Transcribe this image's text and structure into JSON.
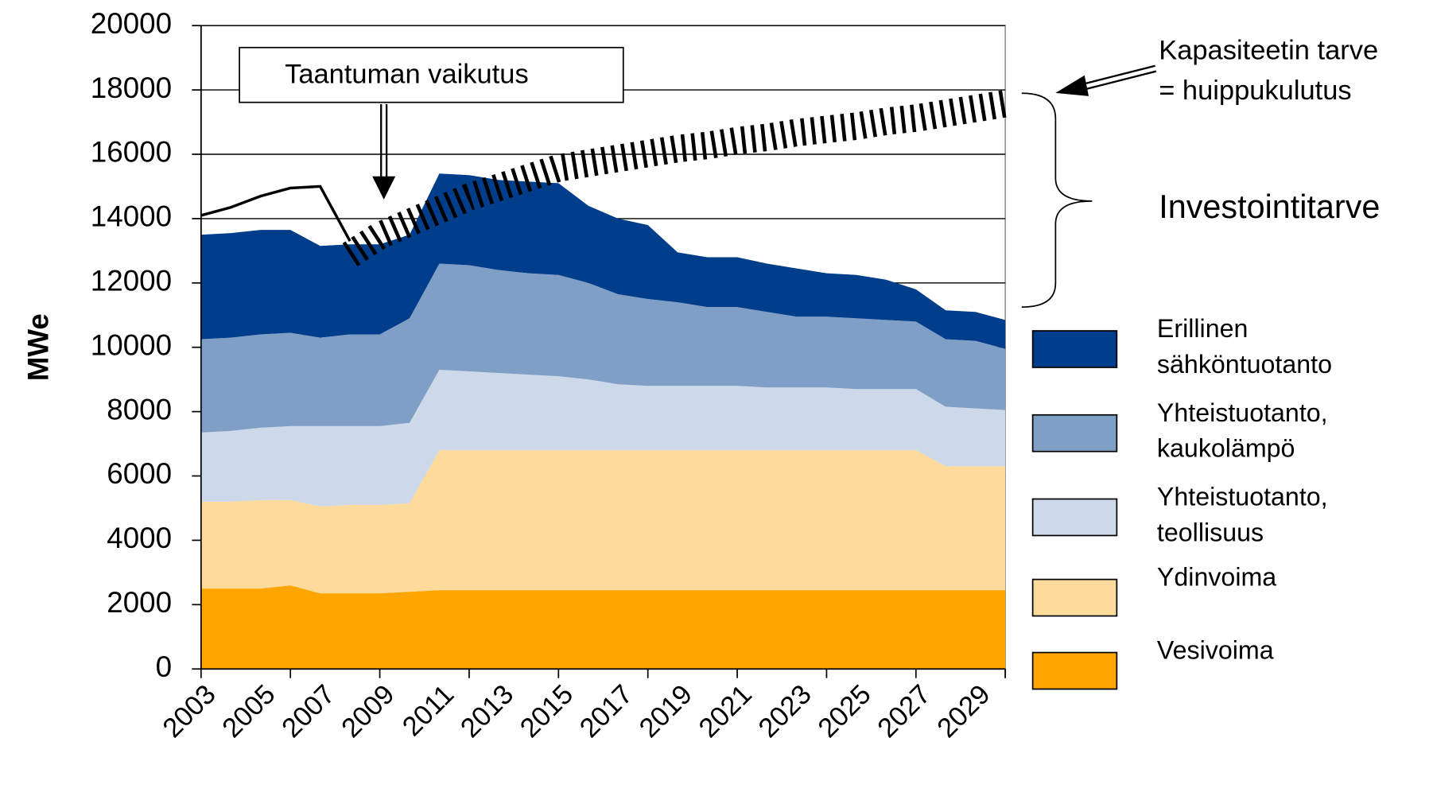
{
  "chart_data": {
    "type": "stacked_area",
    "y_label": "MWe",
    "categories": [
      "2003",
      null,
      "2005",
      null,
      "2007",
      null,
      "2009",
      null,
      "2011",
      null,
      "2013",
      null,
      "2015",
      null,
      "2017",
      null,
      "2019",
      null,
      "2021",
      null,
      "2023",
      null,
      "2025",
      null,
      "2027",
      null,
      "2029",
      null
    ],
    "series": [
      {
        "name": "Vesivoima",
        "color": "#ffa500",
        "values": [
          2500,
          2500,
          2500,
          2600,
          2350,
          2350,
          2350,
          2400,
          2450,
          2450,
          2450,
          2450,
          2450,
          2450,
          2450,
          2450,
          2450,
          2450,
          2450,
          2450,
          2450,
          2450,
          2450,
          2450,
          2450,
          2450,
          2450,
          2450
        ]
      },
      {
        "name": "Ydinvoima",
        "color": "#fcda9b",
        "values": [
          2700,
          2700,
          2750,
          2650,
          2700,
          2750,
          2750,
          2750,
          4350,
          4350,
          4350,
          4350,
          4350,
          4350,
          4350,
          4350,
          4350,
          4350,
          4350,
          4350,
          4350,
          4350,
          4350,
          4350,
          4350,
          3850,
          3850,
          3850
        ]
      },
      {
        "name": "Yhteistuotanto, teollisuus",
        "color": "#cdd9e8",
        "values": [
          2150,
          2200,
          2250,
          2300,
          2500,
          2450,
          2450,
          2500,
          2500,
          2450,
          2400,
          2350,
          2300,
          2200,
          2050,
          2000,
          2000,
          2000,
          2000,
          1950,
          1950,
          1950,
          1900,
          1900,
          1900,
          1850,
          1800,
          1750
        ]
      },
      {
        "name": "Yhteistuotanto, kaukolämpö",
        "color": "#809fc6",
        "values": [
          2900,
          2900,
          2900,
          2900,
          2750,
          2850,
          2850,
          3250,
          3300,
          3300,
          3200,
          3150,
          3150,
          3000,
          2800,
          2700,
          2600,
          2450,
          2450,
          2350,
          2200,
          2200,
          2200,
          2150,
          2100,
          2100,
          2100,
          1900
        ]
      },
      {
        "name": "Erillinen sähköntuotanto",
        "color": "#003d8a",
        "values": [
          3250,
          3250,
          3250,
          3200,
          2850,
          2800,
          2800,
          2600,
          2800,
          2800,
          2800,
          2850,
          2850,
          2400,
          2350,
          2300,
          1550,
          1550,
          1550,
          1500,
          1500,
          1350,
          1350,
          1250,
          1000,
          900,
          900,
          900
        ]
      }
    ],
    "demand": {
      "values": [
        14100,
        14350,
        14700,
        14950,
        15000,
        13300,
        13900,
        14300,
        14700,
        15100,
        15400,
        15700,
        16000,
        16150,
        16300,
        16450,
        16600,
        16700,
        16850,
        16950,
        17100,
        17200,
        17300,
        17450,
        17550,
        17700,
        17850,
        18000
      ]
    },
    "ylim": [
      0,
      20000
    ],
    "yticks": [
      0,
      2000,
      4000,
      6000,
      8000,
      10000,
      12000,
      14000,
      16000,
      18000,
      20000
    ],
    "grid": true,
    "annotations": {
      "recession": "Taantuman vaikutus",
      "capacity_1": "Kapasiteetin tarve",
      "capacity_2": "= huippukulutus",
      "investment": "Investointitarve"
    }
  }
}
